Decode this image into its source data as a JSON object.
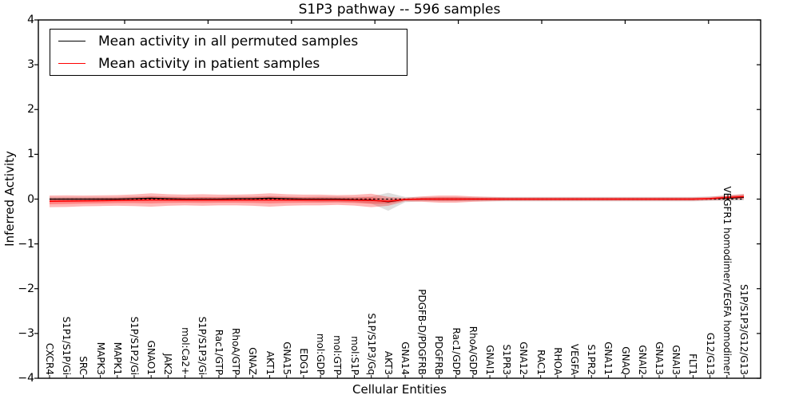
{
  "figure": {
    "title": "S1P3 pathway -- 596 samples",
    "xlabel": "Cellular Entities",
    "ylabel": "Inferred Activity"
  },
  "legend": {
    "items": [
      {
        "label": "Mean activity in all permuted samples",
        "color": "#000000"
      },
      {
        "label": "Mean activity in patient samples",
        "color": "#ff0000"
      }
    ]
  },
  "chart_data": {
    "type": "line",
    "title": "S1P3 pathway -- 596 samples",
    "xlabel": "Cellular Entities",
    "ylabel": "Inferred Activity",
    "ylim": [
      -4,
      4
    ],
    "ytick_values": [
      4,
      3,
      2,
      1,
      0,
      -1,
      -2,
      -3,
      -4
    ],
    "ytick_labels": [
      "4",
      "3",
      "2",
      "1",
      "0",
      "−1",
      "−2",
      "−3",
      "−4"
    ],
    "grid": false,
    "legend_position": "upper left",
    "zero_line": {
      "y": 0,
      "style": "dashed",
      "color": "#000000"
    },
    "categories": [
      "CXCR4",
      "S1P1/S1P/Gi",
      "SRC",
      "MAPK3",
      "MAPK1",
      "S1P/S1P2/Gi",
      "GNAO1",
      "JAK2",
      "mol:Ca2+",
      "S1P/S1P3/Gi",
      "Rac1/GTP",
      "RhoA/GTP",
      "GNAZ",
      "AKT1",
      "GNA15",
      "EDG1",
      "mol:GDP",
      "mol:GTP",
      "mol:S1P",
      "S1P/S1P3/Gq",
      "AKT3",
      "GNA14",
      "PDGFB-D/PDGFRB",
      "PDGFRB",
      "Rac1/GDP",
      "RhoA/GDP",
      "GNAI1",
      "S1PR3",
      "GNA12",
      "RAC1",
      "RHOA",
      "VEGFA",
      "S1PR2",
      "GNA11",
      "GNAQ",
      "GNAI2",
      "GNA13",
      "GNAI3",
      "FLT1",
      "G12/G13",
      "VEGFR1 homodimer/VEGFA homodimer",
      "S1P/S1P3/G12/G13"
    ],
    "series": [
      {
        "name": "Mean activity in all permuted samples",
        "color": "#000000",
        "style": "solid",
        "values": [
          0,
          0,
          0,
          0,
          0,
          0.01,
          0.02,
          0.01,
          0,
          0,
          0,
          0.01,
          0.01,
          0.02,
          0.01,
          0,
          0,
          0,
          -0.01,
          -0.02,
          -0.06,
          -0.01,
          0,
          0,
          0,
          0,
          0,
          0,
          0,
          0,
          0,
          0,
          0,
          0,
          0,
          0,
          0,
          0,
          0,
          0.01,
          0.02,
          0.04
        ]
      },
      {
        "name": "Mean activity in patient samples",
        "color": "#ff0000",
        "style": "solid",
        "values": [
          -0.05,
          -0.045,
          -0.04,
          -0.035,
          -0.03,
          -0.025,
          -0.02,
          -0.02,
          -0.02,
          -0.02,
          -0.02,
          -0.02,
          -0.02,
          -0.02,
          -0.02,
          -0.02,
          -0.02,
          -0.02,
          -0.025,
          -0.03,
          -0.05,
          -0.01,
          0,
          0,
          0,
          0,
          0,
          0,
          0,
          0,
          0,
          0,
          0,
          0,
          0,
          0,
          0,
          0,
          0,
          0.01,
          0.035,
          0.055
        ]
      }
    ],
    "bands": [
      {
        "name": "permuted samples spread",
        "color": "#000000",
        "opacity": 0.13,
        "center_series": 0,
        "halfwidths": [
          0.05,
          0.05,
          0.05,
          0.05,
          0.05,
          0.05,
          0.05,
          0.05,
          0.05,
          0.05,
          0.05,
          0.05,
          0.05,
          0.05,
          0.05,
          0.05,
          0.06,
          0.06,
          0.06,
          0.08,
          0.2,
          0.06,
          0.05,
          0.05,
          0.05,
          0.05,
          0.05,
          0.05,
          0.05,
          0.05,
          0.05,
          0.05,
          0.05,
          0.05,
          0.05,
          0.05,
          0.05,
          0.05,
          0.05,
          0.05,
          0.06,
          0.07
        ]
      },
      {
        "name": "patient samples spread",
        "color": "#ff0000",
        "opacity": 0.28,
        "center_series": 1,
        "halfwidths": [
          0.13,
          0.13,
          0.12,
          0.12,
          0.12,
          0.13,
          0.15,
          0.13,
          0.12,
          0.13,
          0.12,
          0.12,
          0.13,
          0.15,
          0.13,
          0.12,
          0.12,
          0.11,
          0.12,
          0.15,
          0.1,
          0.04,
          0.06,
          0.08,
          0.08,
          0.06,
          0.05,
          0.04,
          0.04,
          0.04,
          0.04,
          0.04,
          0.04,
          0.04,
          0.04,
          0.04,
          0.04,
          0.04,
          0.04,
          0.04,
          0.05,
          0.06
        ]
      }
    ]
  }
}
